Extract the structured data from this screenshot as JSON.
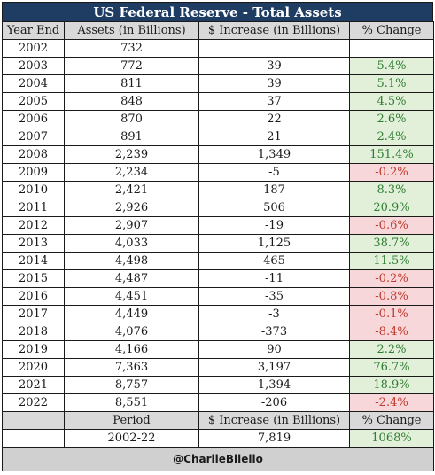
{
  "title": "US Federal Reserve - Total Assets",
  "headers": [
    "Year End",
    "Assets (in Billions)",
    "$ Increase (in Billions)",
    "% Change"
  ],
  "rows": [
    {
      "year": "2002",
      "assets": "732",
      "increase": "",
      "change": "",
      "sign": ""
    },
    {
      "year": "2003",
      "assets": "772",
      "increase": "39",
      "change": "5.4%",
      "sign": "pos"
    },
    {
      "year": "2004",
      "assets": "811",
      "increase": "39",
      "change": "5.1%",
      "sign": "pos"
    },
    {
      "year": "2005",
      "assets": "848",
      "increase": "37",
      "change": "4.5%",
      "sign": "pos"
    },
    {
      "year": "2006",
      "assets": "870",
      "increase": "22",
      "change": "2.6%",
      "sign": "pos"
    },
    {
      "year": "2007",
      "assets": "891",
      "increase": "21",
      "change": "2.4%",
      "sign": "pos"
    },
    {
      "year": "2008",
      "assets": "2,239",
      "increase": "1,349",
      "change": "151.4%",
      "sign": "pos"
    },
    {
      "year": "2009",
      "assets": "2,234",
      "increase": "-5",
      "change": "-0.2%",
      "sign": "neg"
    },
    {
      "year": "2010",
      "assets": "2,421",
      "increase": "187",
      "change": "8.3%",
      "sign": "pos"
    },
    {
      "year": "2011",
      "assets": "2,926",
      "increase": "506",
      "change": "20.9%",
      "sign": "pos"
    },
    {
      "year": "2012",
      "assets": "2,907",
      "increase": "-19",
      "change": "-0.6%",
      "sign": "neg"
    },
    {
      "year": "2013",
      "assets": "4,033",
      "increase": "1,125",
      "change": "38.7%",
      "sign": "pos"
    },
    {
      "year": "2014",
      "assets": "4,498",
      "increase": "465",
      "change": "11.5%",
      "sign": "pos"
    },
    {
      "year": "2015",
      "assets": "4,487",
      "increase": "-11",
      "change": "-0.2%",
      "sign": "neg"
    },
    {
      "year": "2016",
      "assets": "4,451",
      "increase": "-35",
      "change": "-0.8%",
      "sign": "neg"
    },
    {
      "year": "2017",
      "assets": "4,449",
      "increase": "-3",
      "change": "-0.1%",
      "sign": "neg"
    },
    {
      "year": "2018",
      "assets": "4,076",
      "increase": "-373",
      "change": "-8.4%",
      "sign": "neg"
    },
    {
      "year": "2019",
      "assets": "4,166",
      "increase": "90",
      "change": "2.2%",
      "sign": "pos"
    },
    {
      "year": "2020",
      "assets": "7,363",
      "increase": "3,197",
      "change": "76.7%",
      "sign": "pos"
    },
    {
      "year": "2021",
      "assets": "8,757",
      "increase": "1,394",
      "change": "18.9%",
      "sign": "pos"
    },
    {
      "year": "2022",
      "assets": "8,551",
      "increase": "-206",
      "change": "-2.4%",
      "sign": "neg"
    }
  ],
  "summary": {
    "headers": [
      "Period",
      "$ Increase (in Billions)",
      "% Change"
    ],
    "period": "2002-22",
    "increase": "7,819",
    "change": "1068%"
  },
  "footer": "@CharlieBilello",
  "colors": {
    "title_bg": "#1f3d63",
    "header_bg": "#d9d9d9",
    "positive_bg": "#e2f0d9",
    "positive_text": "#2e7d32",
    "negative_bg": "#f8d7da",
    "negative_text": "#c0392b"
  }
}
